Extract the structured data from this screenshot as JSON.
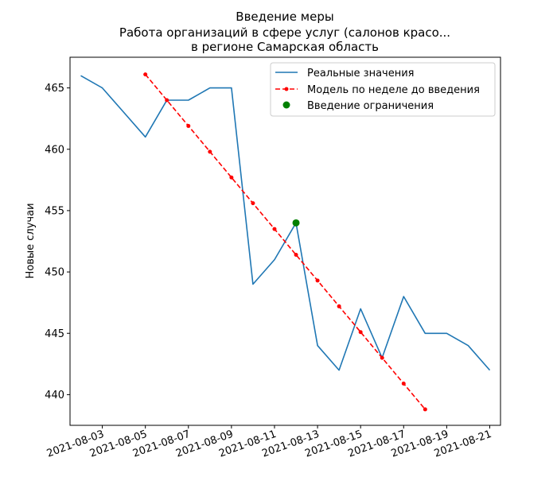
{
  "chart_data": {
    "type": "line",
    "title": [
      "Введение меры",
      "Работа организаций в сфере услуг (салонов красо...",
      "в регионе Самарская область"
    ],
    "xlabel": "",
    "ylabel": "Новые случаи",
    "xlim": [
      "2021-08-01T12:00",
      "2021-08-21T12:00"
    ],
    "ylim": [
      437.5,
      467.5
    ],
    "x_ticks": [
      "2021-08-03",
      "2021-08-05",
      "2021-08-07",
      "2021-08-09",
      "2021-08-11",
      "2021-08-13",
      "2021-08-15",
      "2021-08-17",
      "2021-08-19",
      "2021-08-21"
    ],
    "y_ticks": [
      440,
      445,
      450,
      455,
      460,
      465
    ],
    "grid": false,
    "legend_position": "top-right",
    "series": [
      {
        "name": "Реальные значения",
        "style": "solid",
        "color": "#1f77b4",
        "x": [
          "2021-08-02",
          "2021-08-03",
          "2021-08-04",
          "2021-08-05",
          "2021-08-06",
          "2021-08-07",
          "2021-08-08",
          "2021-08-09",
          "2021-08-10",
          "2021-08-11",
          "2021-08-12",
          "2021-08-13",
          "2021-08-14",
          "2021-08-15",
          "2021-08-16",
          "2021-08-17",
          "2021-08-18",
          "2021-08-19",
          "2021-08-20",
          "2021-08-21"
        ],
        "values": [
          466,
          465,
          463,
          461,
          464,
          464,
          465,
          465,
          449,
          451,
          454,
          444,
          442,
          447,
          443,
          448,
          445,
          445,
          444,
          442
        ]
      },
      {
        "name": "Модель по неделе до введения",
        "style": "dashed-dots",
        "color": "#ff0000",
        "x": [
          "2021-08-05",
          "2021-08-06",
          "2021-08-07",
          "2021-08-08",
          "2021-08-09",
          "2021-08-10",
          "2021-08-11",
          "2021-08-12",
          "2021-08-13",
          "2021-08-14",
          "2021-08-15",
          "2021-08-16",
          "2021-08-17",
          "2021-08-18"
        ],
        "values": [
          466.1,
          464.0,
          461.9,
          459.8,
          457.7,
          455.6,
          453.5,
          451.4,
          449.3,
          447.2,
          445.1,
          443.0,
          440.9,
          438.8
        ]
      },
      {
        "name": "Введение ограничения",
        "style": "marker",
        "color": "#008000",
        "x": [
          "2021-08-12"
        ],
        "values": [
          454
        ]
      }
    ]
  }
}
